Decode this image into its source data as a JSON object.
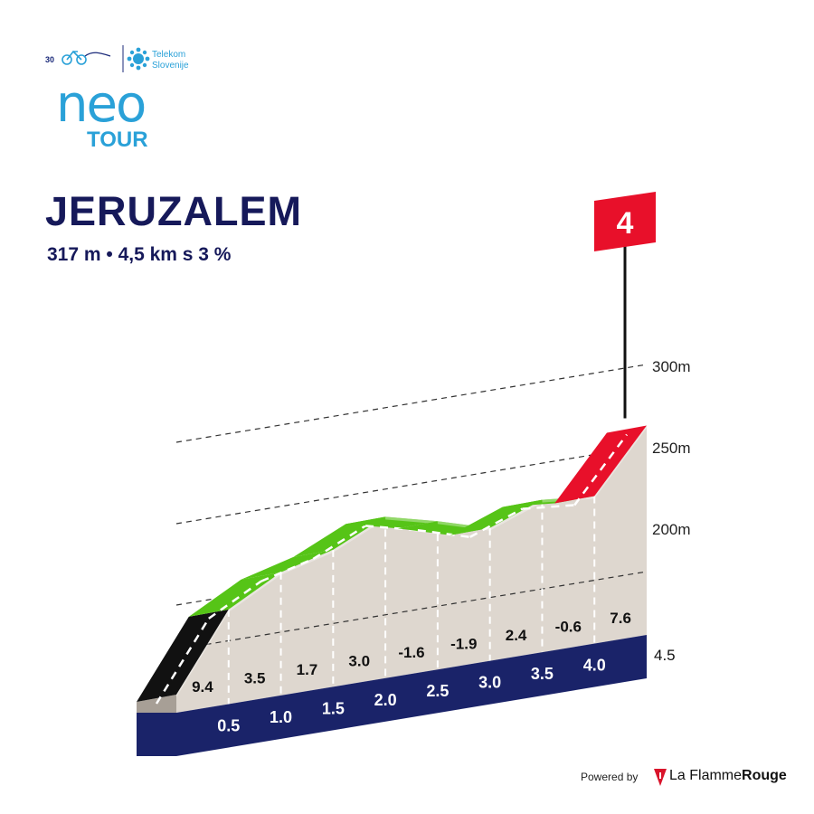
{
  "header": {
    "anniversary": "30",
    "partner_line1": "Telekom",
    "partner_line2": "Slovenije",
    "logo_word": "neo",
    "logo_tour": "TOUR"
  },
  "climb": {
    "title": "JERUZALEM",
    "subtitle": "317 m • 4,5 km s 3 %",
    "category": "4"
  },
  "chart_data": {
    "type": "area",
    "title": "JERUZALEM",
    "subtitle": "317 m • 4,5 km s 3 %",
    "xlabel": "",
    "ylabel": "",
    "x_unit": "km",
    "y_unit": "m",
    "distance_marks": [
      0.5,
      1.0,
      1.5,
      2.0,
      2.5,
      3.0,
      3.5,
      4.0
    ],
    "distance_labels": [
      "0.5",
      "1.0",
      "1.5",
      "2.0",
      "2.5",
      "3.0",
      "3.5",
      "4.0"
    ],
    "total_distance_label": "4.5",
    "segments": [
      {
        "from_km": 0.0,
        "to_km": 0.5,
        "gradient": 9.4,
        "label": "9.4",
        "color": "#111111"
      },
      {
        "from_km": 0.5,
        "to_km": 1.0,
        "gradient": 3.5,
        "label": "3.5",
        "color": "#56c417"
      },
      {
        "from_km": 1.0,
        "to_km": 1.5,
        "gradient": 1.7,
        "label": "1.7",
        "color": "#56c417"
      },
      {
        "from_km": 1.5,
        "to_km": 2.0,
        "gradient": 3.0,
        "label": "3.0",
        "color": "#56c417"
      },
      {
        "from_km": 2.0,
        "to_km": 2.5,
        "gradient": -1.6,
        "label": "-1.6",
        "color": "#56c417"
      },
      {
        "from_km": 2.5,
        "to_km": 3.0,
        "gradient": -1.9,
        "label": "-1.9",
        "color": "#56c417"
      },
      {
        "from_km": 3.0,
        "to_km": 3.5,
        "gradient": 2.4,
        "label": "2.4",
        "color": "#56c417"
      },
      {
        "from_km": 3.5,
        "to_km": 4.0,
        "gradient": -0.6,
        "label": "-0.6",
        "color": "#56c417"
      },
      {
        "from_km": 4.0,
        "to_km": 4.5,
        "gradient": 7.6,
        "label": "7.6",
        "color": "#e8102a"
      }
    ],
    "elevation_ticks": [
      200,
      250,
      300
    ],
    "elevation_tick_labels": [
      "200m",
      "250m",
      "300m"
    ],
    "ylim": [
      145,
      320
    ],
    "grid": true,
    "colors": {
      "climb_steep": "#111111",
      "climb_moderate": "#56c417",
      "climb_final": "#e8102a",
      "base_band": "#1a2369",
      "profile_fill": "#ded7cf",
      "profile_side": "#a79f96",
      "category_flag": "#e8102a"
    }
  },
  "footer": {
    "powered_by": "Powered by",
    "brand_regular": "La Flamme",
    "brand_bold": "Rouge"
  }
}
